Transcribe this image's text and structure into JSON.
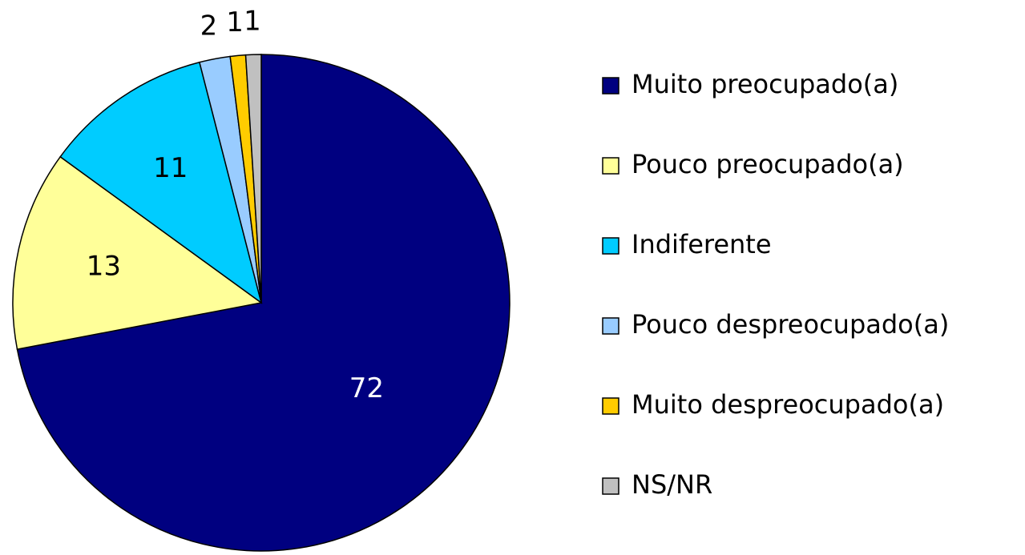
{
  "chart_data": {
    "type": "pie",
    "categories": [
      "Muito preocupado(a)",
      "Pouco preocupado(a)",
      "Indiferente",
      "Pouco despreocupado(a)",
      "Muito despreocupado(a)",
      "NS/NR"
    ],
    "values": [
      72,
      13,
      11,
      2,
      1,
      1
    ],
    "colors": [
      "#000080",
      "#ffff99",
      "#00ccff",
      "#99ccff",
      "#ffcc00",
      "#c0c0c0"
    ],
    "legend": "right"
  }
}
